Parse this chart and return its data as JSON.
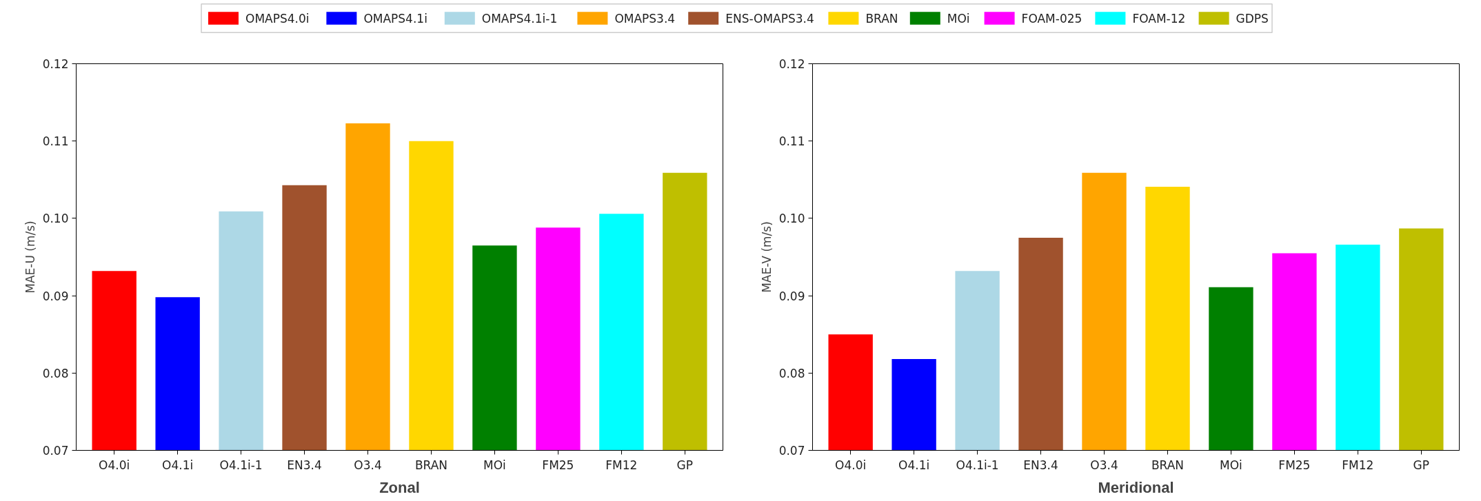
{
  "chart_data": [
    {
      "type": "bar",
      "title": "Zonal",
      "ylabel": "MAE-U (m/s)",
      "categories": [
        "O4.0i",
        "O4.1i",
        "O4.1i-1",
        "EN3.4",
        "O3.4",
        "BRAN",
        "MOi",
        "FM25",
        "FM12",
        "GP"
      ],
      "ylim": [
        0.07,
        0.12
      ],
      "yticks": [
        {
          "value": 0.07,
          "label": "0.07"
        },
        {
          "value": 0.08,
          "label": "0.08"
        },
        {
          "value": 0.09,
          "label": "0.09"
        },
        {
          "value": 0.1,
          "label": "0.10"
        },
        {
          "value": 0.11,
          "label": "0.11"
        },
        {
          "value": 0.12,
          "label": "0.12"
        }
      ],
      "grid": false,
      "legend": "top",
      "series": [
        {
          "name": "OMAPS4.0i",
          "color": "#ff0000",
          "values": [
            0.0932,
            null,
            null,
            null,
            null,
            null,
            null,
            null,
            null,
            null
          ]
        },
        {
          "name": "OMAPS4.1i",
          "color": "#0000ff",
          "values": [
            null,
            0.0898,
            null,
            null,
            null,
            null,
            null,
            null,
            null,
            null
          ]
        },
        {
          "name": "OMAPS4.1i-1",
          "color": "#add8e6",
          "values": [
            null,
            null,
            0.1009,
            null,
            null,
            null,
            null,
            null,
            null,
            null
          ]
        },
        {
          "name": "OMAPS3.4",
          "color": "#ffa500",
          "values": [
            null,
            null,
            null,
            null,
            0.1123,
            null,
            null,
            null,
            null,
            null
          ]
        },
        {
          "name": "ENS-OMAPS3.4",
          "color": "#a0522d",
          "values": [
            null,
            null,
            null,
            0.1043,
            null,
            null,
            null,
            null,
            null,
            null
          ]
        },
        {
          "name": "BRAN",
          "color": "#ffd700",
          "values": [
            null,
            null,
            null,
            null,
            null,
            0.11,
            null,
            null,
            null,
            null
          ]
        },
        {
          "name": "MOi",
          "color": "#008000",
          "values": [
            null,
            null,
            null,
            null,
            null,
            null,
            0.0965,
            null,
            null,
            null
          ]
        },
        {
          "name": "FOAM-025",
          "color": "#ff00ff",
          "values": [
            null,
            null,
            null,
            null,
            null,
            null,
            null,
            0.0988,
            null,
            null
          ]
        },
        {
          "name": "FOAM-12",
          "color": "#00ffff",
          "values": [
            null,
            null,
            null,
            null,
            null,
            null,
            null,
            null,
            0.1006,
            null
          ]
        },
        {
          "name": "GDPS",
          "color": "#bfbf00",
          "values": [
            null,
            null,
            null,
            null,
            null,
            null,
            null,
            null,
            null,
            0.1059
          ]
        }
      ]
    },
    {
      "type": "bar",
      "title": "Meridional",
      "ylabel": "MAE-V (m/s)",
      "categories": [
        "O4.0i",
        "O4.1i",
        "O4.1i-1",
        "EN3.4",
        "O3.4",
        "BRAN",
        "MOi",
        "FM25",
        "FM12",
        "GP"
      ],
      "ylim": [
        0.07,
        0.12
      ],
      "yticks": [
        {
          "value": 0.07,
          "label": "0.07"
        },
        {
          "value": 0.08,
          "label": "0.08"
        },
        {
          "value": 0.09,
          "label": "0.09"
        },
        {
          "value": 0.1,
          "label": "0.10"
        },
        {
          "value": 0.11,
          "label": "0.11"
        },
        {
          "value": 0.12,
          "label": "0.12"
        }
      ],
      "grid": false,
      "series": [
        {
          "color": "#ff0000",
          "values": [
            0.085,
            null,
            null,
            null,
            null,
            null,
            null,
            null,
            null,
            null
          ]
        },
        {
          "color": "#0000ff",
          "values": [
            null,
            0.0818,
            null,
            null,
            null,
            null,
            null,
            null,
            null,
            null
          ]
        },
        {
          "color": "#add8e6",
          "values": [
            null,
            null,
            0.0932,
            null,
            null,
            null,
            null,
            null,
            null,
            null
          ]
        },
        {
          "color": "#ffa500",
          "values": [
            null,
            null,
            null,
            null,
            0.1059,
            null,
            null,
            null,
            null,
            null
          ]
        },
        {
          "color": "#a0522d",
          "values": [
            null,
            null,
            null,
            0.0975,
            null,
            null,
            null,
            null,
            null,
            null
          ]
        },
        {
          "color": "#ffd700",
          "values": [
            null,
            null,
            null,
            null,
            null,
            0.1041,
            null,
            null,
            null,
            null
          ]
        },
        {
          "color": "#008000",
          "values": [
            null,
            null,
            null,
            null,
            null,
            null,
            0.0911,
            null,
            null,
            null
          ]
        },
        {
          "color": "#ff00ff",
          "values": [
            null,
            null,
            null,
            null,
            null,
            null,
            null,
            0.0955,
            null,
            null
          ]
        },
        {
          "color": "#00ffff",
          "values": [
            null,
            null,
            null,
            null,
            null,
            null,
            null,
            null,
            0.0966,
            null
          ]
        },
        {
          "color": "#bfbf00",
          "values": [
            null,
            null,
            null,
            null,
            null,
            null,
            null,
            null,
            null,
            0.0987
          ]
        }
      ]
    }
  ]
}
